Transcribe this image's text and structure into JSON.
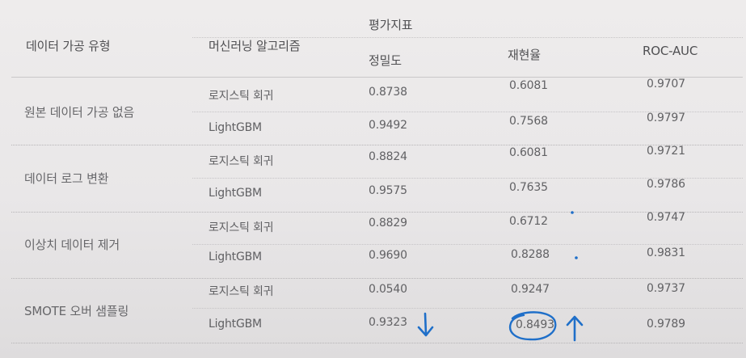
{
  "table": {
    "header": {
      "col_type": "데이터 가공 유형",
      "col_algorithm": "머신러닝 알고리즘",
      "metrics_group": "평가지표",
      "metric_precision": "정밀도",
      "metric_recall": "재현율",
      "metric_rocauc": "ROC-AUC"
    },
    "groups": [
      {
        "name": "원본 데이터 가공 없음",
        "rows": [
          {
            "algorithm": "로지스틱 회귀",
            "precision": "0.8738",
            "recall": "0.6081",
            "rocauc": "0.9707"
          },
          {
            "algorithm": "LightGBM",
            "precision": "0.9492",
            "recall": "0.7568",
            "rocauc": "0.9797"
          }
        ]
      },
      {
        "name": "데이터 로그 변환",
        "rows": [
          {
            "algorithm": "로지스틱 회귀",
            "precision": "0.8824",
            "recall": "0.6081",
            "rocauc": "0.9721"
          },
          {
            "algorithm": "LightGBM",
            "precision": "0.9575",
            "recall": "0.7635",
            "rocauc": "0.9786"
          }
        ]
      },
      {
        "name": "이상치 데이터 제거",
        "rows": [
          {
            "algorithm": "로지스틱 회귀",
            "precision": "0.8829",
            "recall": "0.6712",
            "rocauc": "0.9747"
          },
          {
            "algorithm": "LightGBM",
            "precision": "0.9690",
            "recall": "0.8288",
            "rocauc": "0.9831"
          }
        ]
      },
      {
        "name": "SMOTE 오버 샘플링",
        "rows": [
          {
            "algorithm": "로지스틱 회귀",
            "precision": "0.0540",
            "recall": "0.9247",
            "rocauc": "0.9737"
          },
          {
            "algorithm": "LightGBM",
            "precision": "0.9323",
            "recall": "0.8493",
            "rocauc": "0.9789"
          }
        ]
      }
    ]
  },
  "annotations": {
    "ink_color": "#1f6fc9",
    "precision_arrow_icon": "down-arrow-icon",
    "recall_arrow_icon": "up-arrow-icon",
    "recall_circle": "circle-mark"
  }
}
